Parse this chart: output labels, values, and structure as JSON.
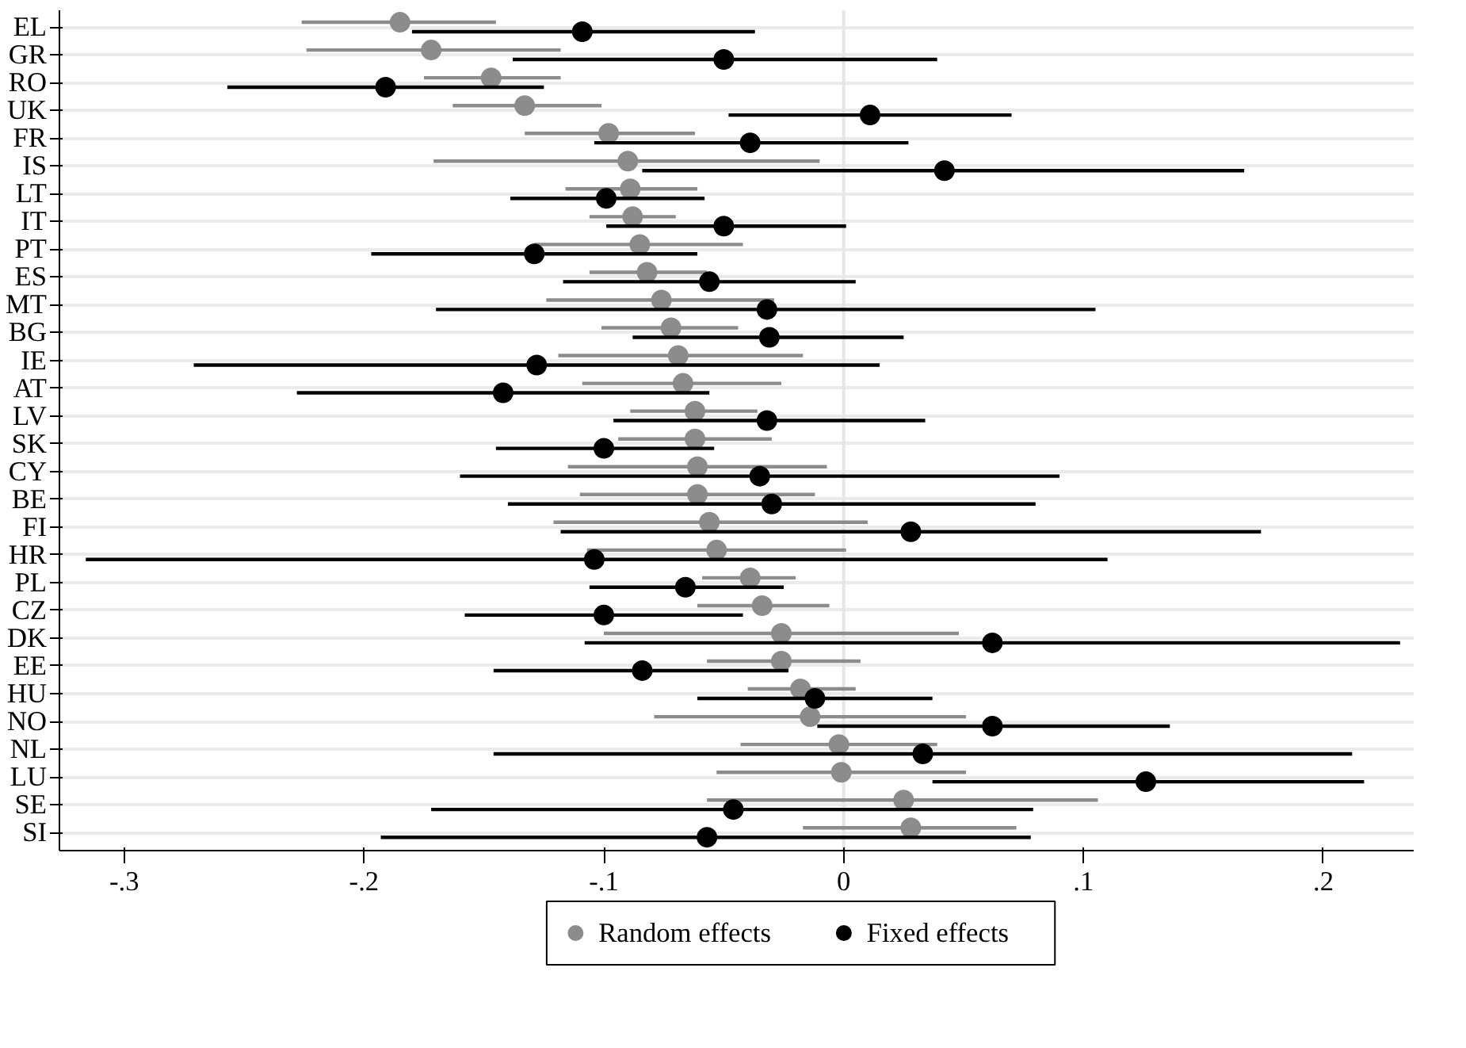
{
  "chart_data": {
    "type": "scatter",
    "categories": [
      "EL",
      "GR",
      "RO",
      "UK",
      "FR",
      "IS",
      "LT",
      "IT",
      "PT",
      "ES",
      "MT",
      "BG",
      "IE",
      "AT",
      "LV",
      "SK",
      "CY",
      "BE",
      "FI",
      "HR",
      "PL",
      "CZ",
      "DK",
      "EE",
      "HU",
      "NO",
      "NL",
      "LU",
      "SE",
      "SI"
    ],
    "orientation": "horizontal",
    "xlim": [
      -0.327,
      0.238
    ],
    "xticks": [
      {
        "value": -0.3,
        "label": "-.3"
      },
      {
        "value": -0.2,
        "label": "-.2"
      },
      {
        "value": -0.1,
        "label": "-.1"
      },
      0,
      {
        "value": 0.1,
        "label": ".1"
      },
      {
        "value": 0.2,
        "label": ".2"
      }
    ],
    "series": [
      {
        "name": "Random effects",
        "color": "#8c8c8c",
        "values": [
          -0.185,
          -0.172,
          -0.147,
          -0.133,
          -0.098,
          -0.09,
          -0.089,
          -0.088,
          -0.085,
          -0.082,
          -0.076,
          -0.072,
          -0.069,
          -0.067,
          -0.062,
          -0.062,
          -0.061,
          -0.061,
          -0.056,
          -0.053,
          -0.039,
          -0.034,
          -0.026,
          -0.026,
          -0.018,
          -0.014,
          -0.002,
          -0.001,
          0.025,
          0.028
        ],
        "errors": [
          [
            -0.226,
            -0.145
          ],
          [
            -0.224,
            -0.118
          ],
          [
            -0.175,
            -0.118
          ],
          [
            -0.163,
            -0.101
          ],
          [
            -0.133,
            -0.062
          ],
          [
            -0.171,
            -0.01
          ],
          [
            -0.116,
            -0.061
          ],
          [
            -0.106,
            -0.07
          ],
          [
            -0.129,
            -0.042
          ],
          [
            -0.106,
            -0.057
          ],
          [
            -0.124,
            -0.029
          ],
          [
            -0.101,
            -0.044
          ],
          [
            -0.119,
            -0.017
          ],
          [
            -0.109,
            -0.026
          ],
          [
            -0.089,
            -0.036
          ],
          [
            -0.094,
            -0.03
          ],
          [
            -0.115,
            -0.007
          ],
          [
            -0.11,
            -0.012
          ],
          [
            -0.121,
            0.01
          ],
          [
            -0.107,
            0.001
          ],
          [
            -0.059,
            -0.02
          ],
          [
            -0.061,
            -0.006
          ],
          [
            -0.1,
            0.048
          ],
          [
            -0.057,
            0.007
          ],
          [
            -0.04,
            0.005
          ],
          [
            -0.079,
            0.051
          ],
          [
            -0.043,
            0.039
          ],
          [
            -0.053,
            0.051
          ],
          [
            -0.057,
            0.106
          ],
          [
            -0.017,
            0.072
          ]
        ]
      },
      {
        "name": "Fixed effects",
        "color": "#000000",
        "values": [
          -0.109,
          -0.05,
          -0.191,
          0.011,
          -0.039,
          0.042,
          -0.099,
          -0.05,
          -0.129,
          -0.056,
          -0.032,
          -0.031,
          -0.128,
          -0.142,
          -0.032,
          -0.1,
          -0.035,
          -0.03,
          0.028,
          -0.104,
          -0.066,
          -0.1,
          0.062,
          -0.084,
          -0.012,
          0.062,
          0.033,
          0.126,
          -0.046,
          -0.057
        ],
        "errors": [
          [
            -0.18,
            -0.037
          ],
          [
            -0.138,
            0.039
          ],
          [
            -0.257,
            -0.125
          ],
          [
            -0.048,
            0.07
          ],
          [
            -0.104,
            0.027
          ],
          [
            -0.084,
            0.167
          ],
          [
            -0.139,
            -0.058
          ],
          [
            -0.099,
            0.001
          ],
          [
            -0.197,
            -0.061
          ],
          [
            -0.117,
            0.005
          ],
          [
            -0.17,
            0.105
          ],
          [
            -0.088,
            0.025
          ],
          [
            -0.271,
            0.015
          ],
          [
            -0.228,
            -0.056
          ],
          [
            -0.096,
            0.034
          ],
          [
            -0.145,
            -0.054
          ],
          [
            -0.16,
            0.09
          ],
          [
            -0.14,
            0.08
          ],
          [
            -0.118,
            0.174
          ],
          [
            -0.316,
            0.11
          ],
          [
            -0.106,
            -0.025
          ],
          [
            -0.158,
            -0.042
          ],
          [
            -0.108,
            0.232
          ],
          [
            -0.146,
            -0.023
          ],
          [
            -0.061,
            0.037
          ],
          [
            -0.011,
            0.136
          ],
          [
            -0.146,
            0.212
          ],
          [
            0.037,
            0.217
          ],
          [
            -0.172,
            0.079
          ],
          [
            -0.193,
            0.078
          ]
        ]
      }
    ],
    "ref_lines": [
      {
        "axis": "x",
        "value": 0,
        "color": "#e6e6e6"
      }
    ],
    "grid": "y",
    "legend": "bottom",
    "marker": "circle"
  }
}
